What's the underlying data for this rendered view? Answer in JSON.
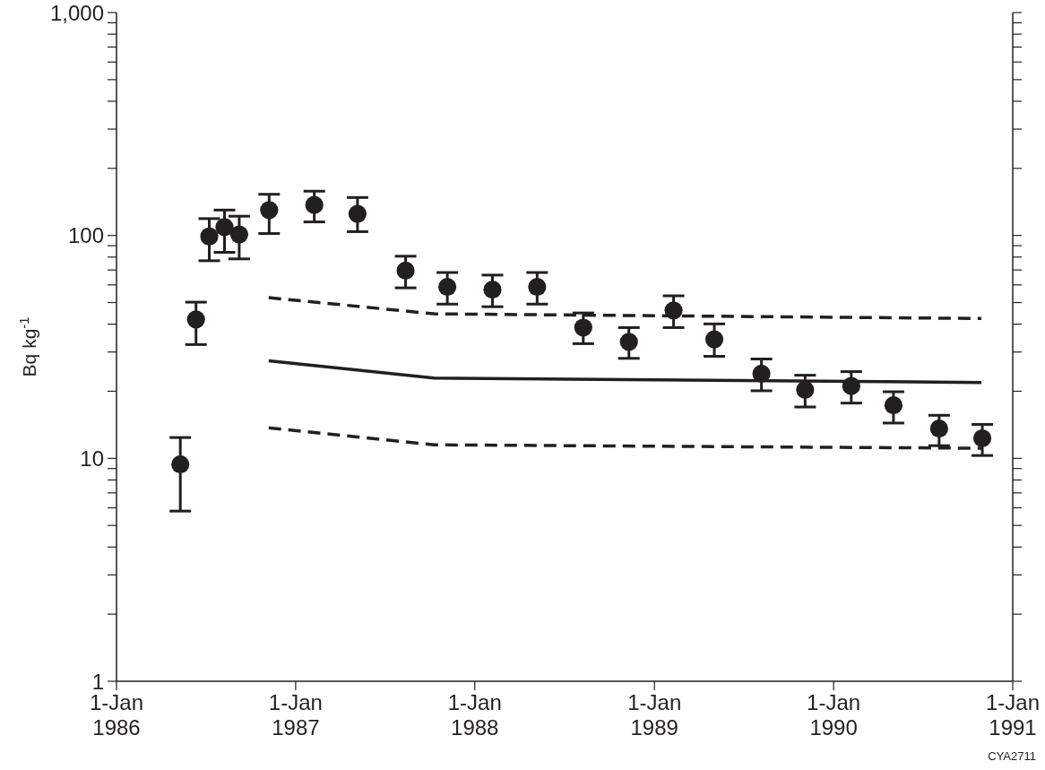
{
  "chart_data": {
    "type": "scatter",
    "ylabel": "Bq kg$^{-1}$",
    "log": "y",
    "xlim": [
      "1986-01-01",
      "1991-01-01"
    ],
    "xticks": [
      {
        "value": "1986-01-01",
        "label": "1-Jan\n1986"
      },
      {
        "value": "1987-01-01",
        "label": "1-Jan\n1987"
      },
      {
        "value": "1988-01-01",
        "label": "1-Jan\n1988"
      },
      {
        "value": "1989-01-01",
        "label": "1-Jan\n1989"
      },
      {
        "value": "1990-01-01",
        "label": "1-Jan\n1990"
      },
      {
        "value": "1991-01-01",
        "label": "1-Jan\n1991"
      }
    ],
    "ylim": [
      1,
      1000
    ],
    "yticks": [
      1,
      {
        "value": 2,
        "label": null
      },
      {
        "value": 3,
        "label": null
      },
      {
        "value": 4,
        "label": null
      },
      {
        "value": 5,
        "label": null
      },
      {
        "value": 6,
        "label": null
      },
      {
        "value": 7,
        "label": null
      },
      {
        "value": 8,
        "label": null
      },
      {
        "value": 9,
        "label": null
      },
      10,
      {
        "value": 20,
        "label": null
      },
      {
        "value": 30,
        "label": null
      },
      {
        "value": 40,
        "label": null
      },
      {
        "value": 50,
        "label": null
      },
      {
        "value": 60,
        "label": null
      },
      {
        "value": 70,
        "label": null
      },
      {
        "value": 80,
        "label": null
      },
      {
        "value": 90,
        "label": null
      },
      100,
      {
        "value": 200,
        "label": null
      },
      {
        "value": 300,
        "label": null
      },
      {
        "value": 400,
        "label": null
      },
      {
        "value": 500,
        "label": null
      },
      {
        "value": 600,
        "label": null
      },
      {
        "value": 700,
        "label": null
      },
      {
        "value": 800,
        "label": null
      },
      {
        "value": 900,
        "label": null
      },
      {
        "value": 1000,
        "label": "1,000"
      }
    ],
    "annotations": [
      "CYA2711"
    ],
    "series": [
      {
        "color": "#231f20",
        "marker": "circle",
        "x": [
          "1986-05-11",
          "1986-06-12",
          "1986-07-09",
          "1986-08-09",
          "1986-09-08",
          "1986-11-08",
          "1987-02-08",
          "1987-05-07",
          "1987-08-13",
          "1987-11-06",
          "1988-02-06",
          "1988-05-07",
          "1988-08-09",
          "1988-11-10",
          "1989-02-09",
          "1989-05-03",
          "1989-08-07",
          "1989-11-04",
          "1990-02-06",
          "1990-05-03",
          "1990-08-04",
          "1990-10-31"
        ],
        "values": [
          9.4,
          42,
          99,
          109,
          101,
          130,
          137,
          125,
          69.5,
          58.8,
          57.1,
          58.8,
          38.6,
          33.3,
          46.1,
          34.2,
          24,
          20.3,
          21.1,
          17.3,
          13.6,
          12.3
        ],
        "errors": [
          [
            5.8,
            12.4
          ],
          [
            32.4,
            50.2
          ],
          [
            77,
            119
          ],
          [
            84,
            130
          ],
          [
            78.5,
            122
          ],
          [
            102,
            153
          ],
          [
            115,
            158
          ],
          [
            104,
            148
          ],
          [
            58.2,
            80.7
          ],
          [
            49.2,
            68.2
          ],
          [
            47.9,
            66.4
          ],
          [
            49.2,
            68.2
          ],
          [
            32.7,
            44.9
          ],
          [
            28.1,
            38.6
          ],
          [
            38.6,
            53.6
          ],
          [
            28.7,
            40.1
          ],
          [
            20.1,
            27.9
          ],
          [
            17,
            23.6
          ],
          [
            17.7,
            24.5
          ],
          [
            14.4,
            19.9
          ],
          [
            11.4,
            15.6
          ],
          [
            10.3,
            14.2
          ]
        ]
      },
      {
        "type": "line",
        "color": "#231f20",
        "line_style": "solid",
        "x": [
          "1986-11-07",
          "1987-10-10",
          "1990-10-29"
        ],
        "values": [
          27.4,
          22.9,
          21.9
        ]
      },
      {
        "type": "line",
        "color": "#231f20",
        "line_style": "dashed",
        "x": [
          "1986-11-07",
          "1987-10-10",
          "1990-10-29"
        ],
        "values": [
          52.6,
          44.5,
          42.4
        ]
      },
      {
        "type": "line",
        "color": "#231f20",
        "line_style": "dashed",
        "x": [
          "1986-11-07",
          "1987-10-10",
          "1990-10-29"
        ],
        "values": [
          13.7,
          11.5,
          11.1
        ]
      }
    ]
  }
}
